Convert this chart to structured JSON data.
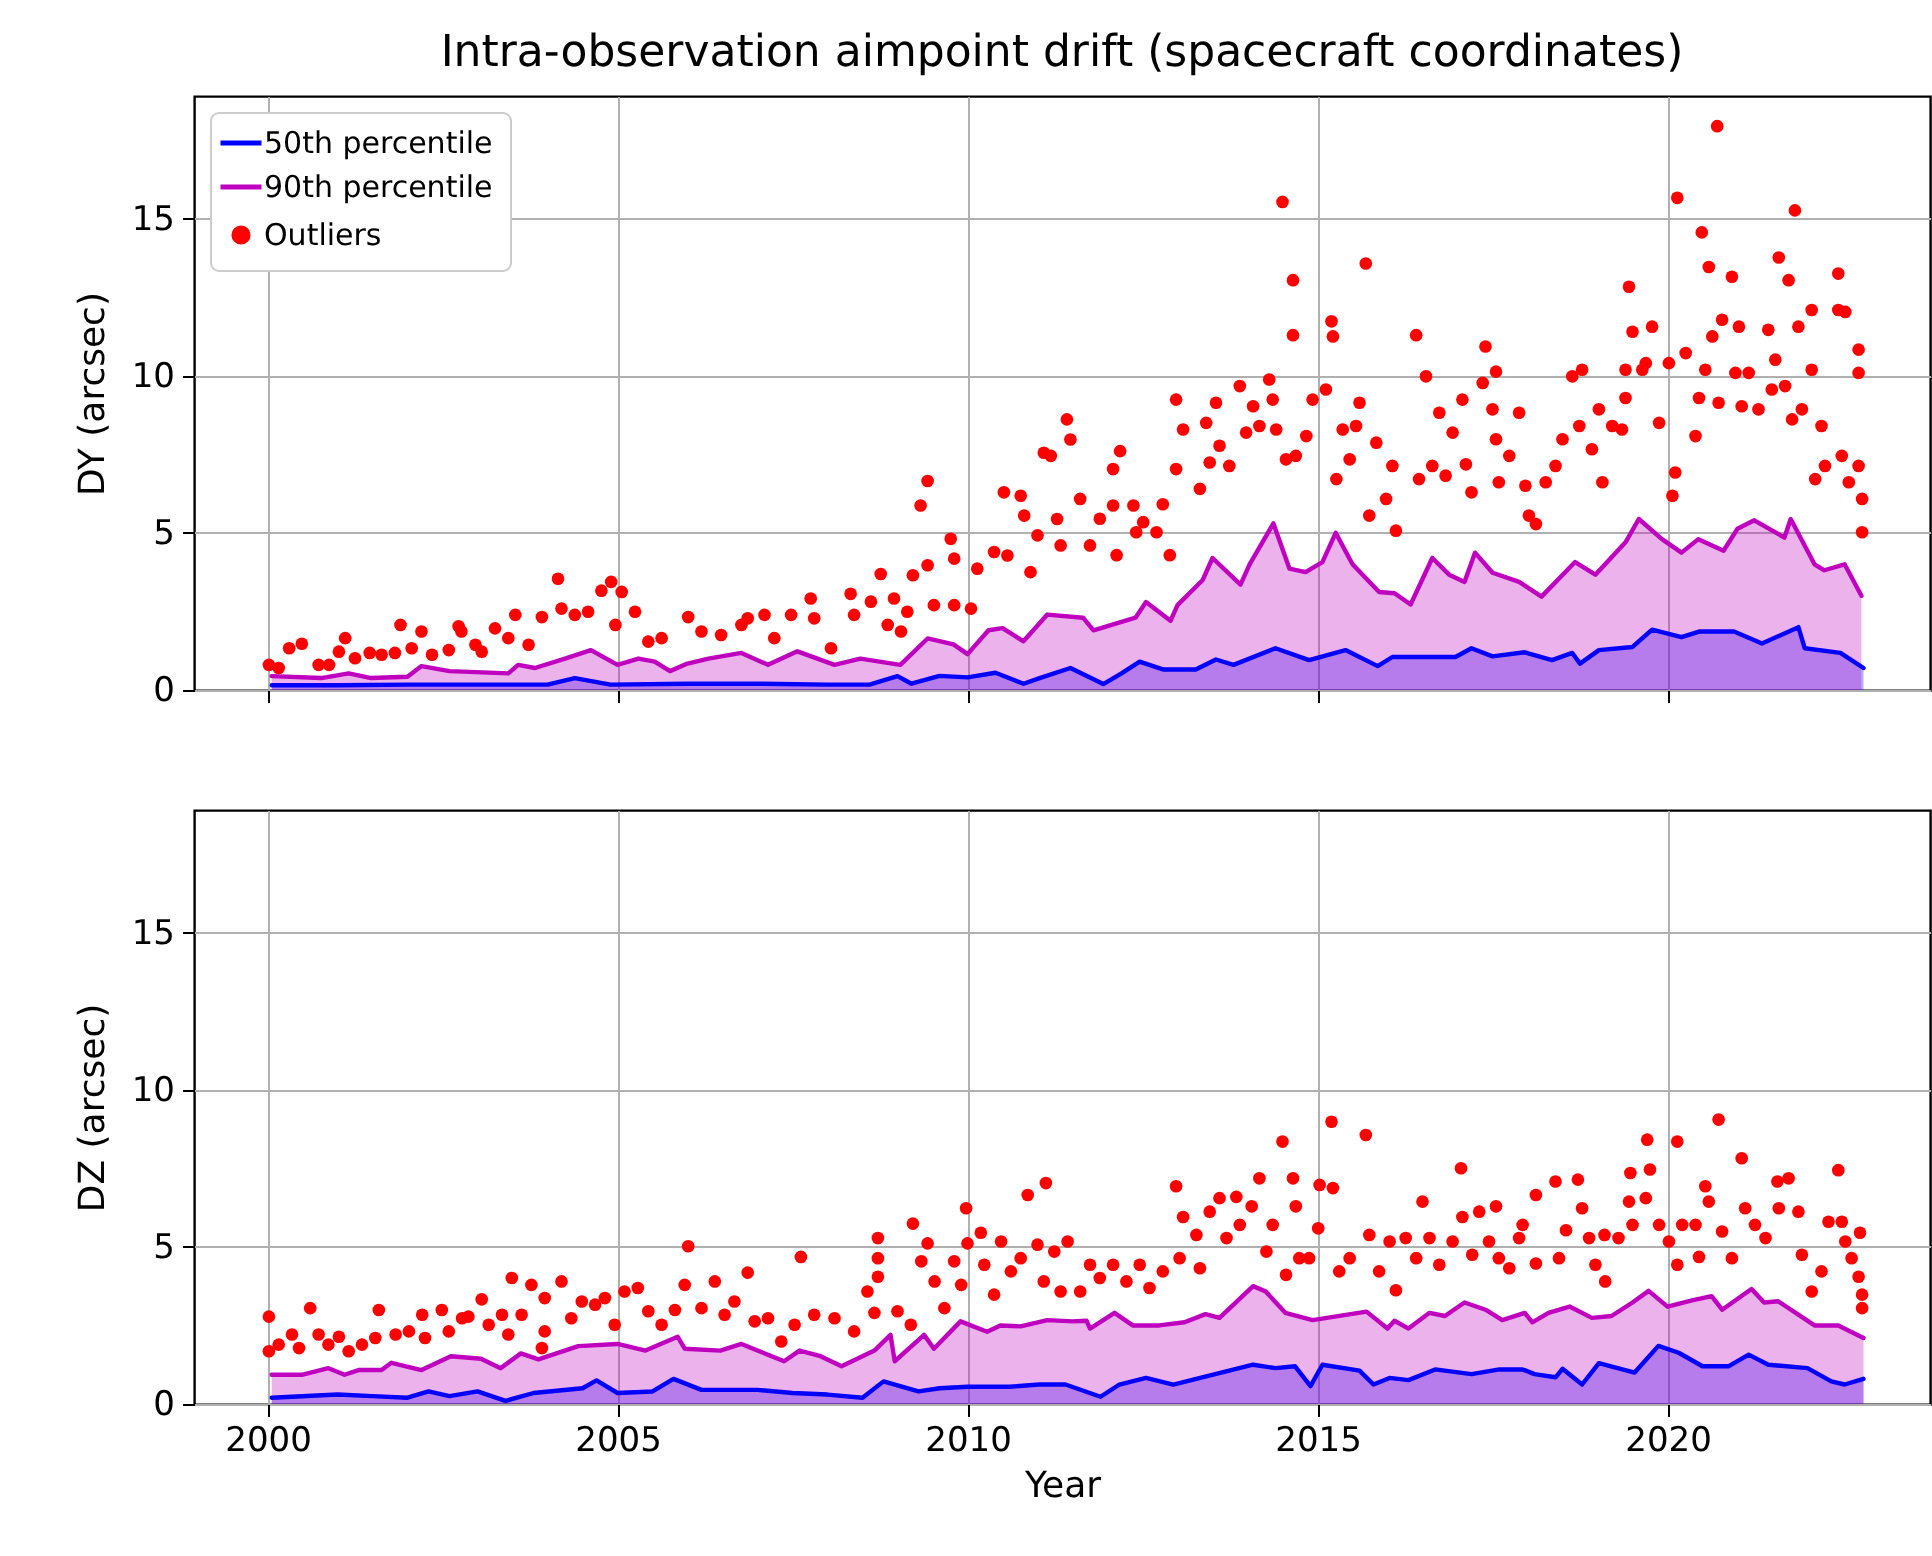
{
  "chart_data": [
    {
      "type": "area",
      "title": "Intra-observation aimpoint drift (spacecraft coordinates)",
      "ylabel": "DY (arcsec)",
      "xlim": [
        1998.95,
        2023.75
      ],
      "ylim": [
        0,
        18.9
      ],
      "xticks": [
        2000,
        2005,
        2010,
        2015,
        2020
      ],
      "yticks": [
        0,
        5,
        10,
        15
      ],
      "grid": true,
      "legend": "top left",
      "tick_labels": "y",
      "series": [
        {
          "name": "50th percentile",
          "color": "#0000ff",
          "x": [
            2000.06,
            2001.0,
            2002.0,
            2003.0,
            2004.0,
            2004.39,
            2004.9,
            2006.0,
            2007.0,
            2008.0,
            2008.6,
            2009.0,
            2009.2,
            2009.6,
            2010.0,
            2010.4,
            2010.8,
            2011.03,
            2011.47,
            2011.94,
            2012.2,
            2012.46,
            2012.8,
            2013.26,
            2013.55,
            2013.8,
            2014.4,
            2014.88,
            2015.4,
            2015.86,
            2016.07,
            2016.97,
            2017.2,
            2017.5,
            2017.96,
            2018.35,
            2018.64,
            2018.75,
            2019.02,
            2019.5,
            2019.78,
            2020.2,
            2020.45,
            2020.95,
            2021.35,
            2021.87,
            2021.96,
            2022.47,
            2022.8
          ],
          "values": [
            0.15,
            0.15,
            0.17,
            0.17,
            0.17,
            0.38,
            0.17,
            0.2,
            0.2,
            0.17,
            0.17,
            0.44,
            0.2,
            0.45,
            0.4,
            0.55,
            0.2,
            0.38,
            0.7,
            0.19,
            0.53,
            0.9,
            0.65,
            0.65,
            0.97,
            0.8,
            1.33,
            0.95,
            1.27,
            0.76,
            1.05,
            1.05,
            1.33,
            1.07,
            1.2,
            0.95,
            1.18,
            0.84,
            1.27,
            1.37,
            1.92,
            1.68,
            1.86,
            1.86,
            1.48,
            2.0,
            1.33,
            1.18,
            0.7
          ]
        },
        {
          "name": "90th percentile",
          "color": "#bf00bf",
          "x": [
            2000.06,
            2000.77,
            2001.16,
            2001.48,
            2002.0,
            2002.2,
            2002.6,
            2003.44,
            2003.58,
            2003.82,
            2004.25,
            2004.62,
            2005.0,
            2005.3,
            2005.53,
            2005.75,
            2006.0,
            2006.3,
            2006.77,
            2007.15,
            2007.57,
            2008.1,
            2008.47,
            2009.04,
            2009.43,
            2009.8,
            2010.0,
            2010.3,
            2010.5,
            2010.8,
            2011.14,
            2011.65,
            2011.8,
            2012.4,
            2012.55,
            2012.9,
            2013.0,
            2013.36,
            2013.5,
            2013.9,
            2014.03,
            2014.37,
            2014.6,
            2014.83,
            2015.07,
            2015.26,
            2015.5,
            2015.88,
            2016.1,
            2016.33,
            2016.64,
            2016.88,
            2017.1,
            2017.25,
            2017.5,
            2017.88,
            2018.2,
            2018.68,
            2018.97,
            2019.4,
            2019.59,
            2019.92,
            2020.2,
            2020.44,
            2020.8,
            2021.0,
            2021.24,
            2021.67,
            2021.76,
            2022.1,
            2022.24,
            2022.53,
            2022.77
          ],
          "values": [
            0.44,
            0.38,
            0.53,
            0.38,
            0.42,
            0.76,
            0.6,
            0.53,
            0.8,
            0.7,
            1.0,
            1.27,
            0.8,
            1.0,
            0.9,
            0.6,
            0.84,
            1.0,
            1.18,
            0.8,
            1.23,
            0.8,
            1.0,
            0.8,
            1.64,
            1.45,
            1.14,
            1.9,
            1.97,
            1.55,
            2.4,
            2.3,
            1.9,
            2.3,
            2.8,
            2.2,
            2.7,
            3.5,
            4.2,
            3.35,
            4.0,
            5.3,
            3.86,
            3.75,
            4.07,
            5.0,
            4.0,
            3.12,
            3.08,
            2.72,
            4.2,
            3.67,
            3.44,
            4.37,
            3.73,
            3.44,
            2.97,
            4.07,
            3.67,
            4.7,
            5.44,
            4.8,
            4.37,
            4.8,
            4.43,
            5.13,
            5.4,
            4.85,
            5.44,
            4.0,
            3.81,
            4.0,
            3.0
          ]
        },
        {
          "name": "Outliers",
          "color": "#ff0000",
          "type": "scatter",
          "marker": "circle",
          "x": [
            2000.02,
            2000.16,
            2000.31,
            2000.49,
            2000.73,
            2000.88,
            2001.02,
            2001.11,
            2001.25,
            2001.46,
            2001.63,
            2001.82,
            2001.9,
            2002.06,
            2002.2,
            2002.35,
            2002.59,
            2002.73,
            2002.77,
            2002.97,
            2003.06,
            2003.25,
            2003.44,
            2003.54,
            2003.73,
            2003.92,
            2004.15,
            2004.2,
            2004.39,
            2004.58,
            2004.77,
            2004.91,
            2005.06,
            2004.97,
            2005.25,
            2005.44,
            2005.63,
            2006.01,
            2006.2,
            2006.48,
            2006.77,
            2006.86,
            2007.1,
            2007.24,
            2007.48,
            2007.76,
            2007.81,
            2008.05,
            2008.33,
            2008.38,
            2008.62,
            2008.76,
            2008.86,
            2008.95,
            2009.05,
            2009.14,
            2009.22,
            2009.33,
            2009.43,
            2009.43,
            2009.52,
            2009.76,
            2009.81,
            2009.81,
            2010.05,
            2010.14,
            2010.38,
            2010.52,
            2010.57,
            2010.76,
            2010.81,
            2010.9,
            2011.0,
            2011.09,
            2011.19,
            2011.28,
            2011.33,
            2011.42,
            2011.47,
            2011.61,
            2011.75,
            2011.89,
            2012.08,
            2012.08,
            2012.13,
            2012.18,
            2012.37,
            2012.41,
            2012.51,
            2012.7,
            2012.79,
            2012.89,
            2012.98,
            2012.98,
            2013.08,
            2013.32,
            2013.41,
            2013.46,
            2013.55,
            2013.6,
            2013.74,
            2013.89,
            2013.98,
            2014.08,
            2014.17,
            2014.31,
            2014.36,
            2014.41,
            2014.5,
            2014.55,
            2014.65,
            2014.65,
            2014.69,
            2014.84,
            2014.93,
            2015.12,
            2015.2,
            2015.22,
            2015.27,
            2015.36,
            2015.46,
            2015.55,
            2015.6,
            2015.69,
            2015.74,
            2015.84,
            2015.98,
            2016.07,
            2016.12,
            2016.41,
            2016.45,
            2016.55,
            2016.64,
            2016.74,
            2016.83,
            2016.93,
            2017.07,
            2017.12,
            2017.2,
            2017.36,
            2017.4,
            2017.5,
            2017.55,
            2017.55,
            2017.59,
            2017.74,
            2017.88,
            2017.97,
            2018.02,
            2018.12,
            2018.26,
            2018.4,
            2018.5,
            2018.64,
            2018.74,
            2018.78,
            2018.92,
            2019.02,
            2019.07,
            2019.21,
            2019.35,
            2019.4,
            2019.4,
            2019.45,
            2019.5,
            2019.64,
            2019.69,
            2019.78,
            2019.88,
            2020.02,
            2020.07,
            2020.11,
            2020.14,
            2020.26,
            2020.4,
            2020.45,
            2020.49,
            2020.54,
            2020.59,
            2020.64,
            2020.71,
            2020.73,
            2020.78,
            2020.92,
            2020.97,
            2021.02,
            2021.06,
            2021.16,
            2021.3,
            2021.44,
            2021.49,
            2021.54,
            2021.59,
            2021.68,
            2021.73,
            2021.78,
            2021.82,
            2021.87,
            2021.92,
            2022.06,
            2022.06,
            2022.11,
            2022.2,
            2022.25,
            2022.44,
            2022.44,
            2022.49,
            2022.54,
            2022.59,
            2022.73,
            2022.73,
            2022.73,
            2022.78,
            2022.78
          ],
          "values": [
            0.8,
            0.7,
            1.33,
            1.47,
            0.8,
            0.8,
            1.22,
            1.65,
            1.01,
            1.18,
            1.12,
            1.18,
            2.07,
            1.33,
            1.86,
            1.12,
            1.27,
            2.03,
            1.86,
            1.44,
            1.22,
            1.96,
            1.65,
            2.39,
            1.44,
            2.32,
            3.54,
            2.59,
            2.39,
            2.49,
            3.16,
            3.44,
            3.12,
            2.07,
            2.49,
            1.54,
            1.65,
            2.32,
            1.86,
            1.75,
            2.07,
            2.28,
            2.39,
            1.65,
            2.39,
            2.91,
            2.28,
            1.33,
            3.06,
            2.39,
            2.81,
            3.69,
            2.07,
            2.91,
            1.86,
            2.49,
            3.65,
            5.87,
            6.65,
            3.97,
            2.7,
            4.81,
            4.18,
            2.7,
            2.59,
            3.86,
            4.39,
            6.29,
            4.28,
            6.18,
            5.55,
            3.75,
            4.92,
            7.55,
            7.45,
            5.44,
            4.6,
            8.61,
            7.97,
            6.08,
            4.6,
            5.45,
            5.87,
            7.03,
            4.29,
            7.6,
            5.87,
            5.02,
            5.34,
            5.02,
            5.91,
            4.29,
            9.24,
            7.03,
            8.29,
            6.4,
            8.5,
            7.24,
            9.14,
            7.77,
            7.13,
            9.67,
            8.19,
            9.03,
            8.4,
            9.88,
            9.24,
            8.29,
            15.53,
            7.34,
            13.04,
            11.29,
            7.45,
            8.08,
            9.24,
            9.56,
            11.73,
            11.25,
            6.71,
            8.29,
            7.34,
            8.4,
            9.14,
            13.57,
            5.55,
            7.87,
            6.08,
            7.13,
            5.07,
            11.29,
            6.71,
            9.98,
            7.13,
            8.82,
            6.82,
            8.19,
            9.24,
            7.18,
            6.29,
            9.77,
            10.93,
            8.93,
            10.13,
            7.98,
            6.61,
            7.45,
            8.82,
            6.5,
            5.55,
            5.28,
            6.61,
            7.13,
            7.98,
            9.98,
            8.4,
            10.19,
            7.66,
            8.93,
            6.61,
            8.4,
            8.29,
            9.29,
            10.19,
            12.83,
            11.4,
            10.19,
            10.4,
            11.56,
            8.5,
            10.4,
            6.18,
            6.92,
            15.66,
            10.72,
            8.08,
            9.29,
            14.56,
            10.19,
            13.46,
            11.25,
            17.94,
            9.14,
            11.78,
            13.15,
            10.09,
            11.56,
            9.03,
            10.09,
            8.93,
            11.46,
            9.56,
            10.51,
            13.76,
            9.67,
            13.04,
            8.61,
            15.26,
            11.56,
            8.93,
            12.09,
            10.19,
            6.71,
            8.4,
            7.13,
            13.25,
            12.09,
            7.45,
            12.03,
            6.61,
            10.83,
            10.09,
            7.13,
            6.08,
            5.02
          ]
        }
      ]
    },
    {
      "type": "area",
      "xlabel": "Year",
      "ylabel": "DZ (arcsec)",
      "xlim": [
        1998.95,
        2023.75
      ],
      "ylim": [
        0,
        18.9
      ],
      "xticks": [
        2000,
        2005,
        2010,
        2015,
        2020
      ],
      "yticks": [
        0,
        5,
        10,
        15
      ],
      "grid": true,
      "series": [
        {
          "color": "#0000ff",
          "x": [
            2000.06,
            2001.0,
            2001.5,
            2002.0,
            2002.3,
            2002.6,
            2003.0,
            2003.4,
            2003.8,
            2004.5,
            2004.7,
            2005.0,
            2005.5,
            2005.8,
            2006.2,
            2007.0,
            2007.5,
            2008.0,
            2008.5,
            2008.8,
            2009.3,
            2009.6,
            2010.0,
            2010.6,
            2011.03,
            2011.4,
            2011.9,
            2012.17,
            2012.55,
            2012.94,
            2014.08,
            2014.4,
            2014.68,
            2014.9,
            2015.07,
            2015.6,
            2015.8,
            2016.03,
            2016.3,
            2016.68,
            2017.2,
            2017.6,
            2017.93,
            2018.1,
            2018.4,
            2018.5,
            2018.78,
            2019.02,
            2019.53,
            2019.87,
            2020.16,
            2020.5,
            2020.87,
            2021.16,
            2021.44,
            2022.0,
            2022.34,
            2022.53,
            2022.8
          ],
          "values": [
            0.2,
            0.3,
            0.25,
            0.2,
            0.4,
            0.25,
            0.4,
            0.1,
            0.35,
            0.5,
            0.75,
            0.35,
            0.4,
            0.8,
            0.45,
            0.45,
            0.35,
            0.3,
            0.2,
            0.72,
            0.4,
            0.5,
            0.55,
            0.55,
            0.62,
            0.62,
            0.23,
            0.62,
            0.83,
            0.62,
            1.25,
            1.14,
            1.2,
            0.57,
            1.25,
            1.06,
            0.62,
            0.83,
            0.76,
            1.1,
            0.95,
            1.1,
            1.1,
            0.95,
            0.85,
            1.12,
            0.62,
            1.3,
            1.0,
            1.85,
            1.63,
            1.2,
            1.2,
            1.57,
            1.25,
            1.14,
            0.72,
            0.62,
            0.8
          ]
        },
        {
          "color": "#bf00bf",
          "x": [
            2000.06,
            2000.49,
            2000.87,
            2001.1,
            2001.3,
            2001.63,
            2001.77,
            2002.2,
            2002.62,
            2003.05,
            2003.33,
            2003.62,
            2003.87,
            2004.44,
            2005.0,
            2005.4,
            2005.86,
            2005.96,
            2006.47,
            2006.77,
            2007.38,
            2007.6,
            2007.9,
            2008.2,
            2008.67,
            2008.9,
            2008.96,
            2009.38,
            2009.52,
            2009.9,
            2010.28,
            2010.47,
            2010.76,
            2011.14,
            2011.5,
            2011.7,
            2011.75,
            2012.1,
            2012.36,
            2012.74,
            2013.1,
            2013.4,
            2013.6,
            2014.08,
            2014.26,
            2014.54,
            2014.93,
            2015.7,
            2016.0,
            2016.1,
            2016.3,
            2016.6,
            2016.82,
            2017.1,
            2017.4,
            2017.64,
            2017.96,
            2018.07,
            2018.3,
            2018.6,
            2018.92,
            2019.2,
            2019.5,
            2019.73,
            2020.0,
            2020.35,
            2020.63,
            2020.78,
            2021.2,
            2021.38,
            2021.58,
            2022.1,
            2022.44,
            2022.8
          ],
          "values": [
            0.93,
            0.93,
            1.14,
            0.93,
            1.08,
            1.08,
            1.31,
            1.08,
            1.52,
            1.44,
            1.14,
            1.61,
            1.42,
            1.84,
            1.91,
            1.7,
            2.14,
            1.76,
            1.7,
            1.91,
            1.36,
            1.7,
            1.52,
            1.2,
            1.7,
            2.2,
            1.36,
            2.2,
            1.76,
            2.63,
            2.3,
            2.5,
            2.47,
            2.67,
            2.63,
            2.65,
            2.4,
            2.9,
            2.5,
            2.5,
            2.6,
            2.86,
            2.74,
            3.75,
            3.58,
            2.9,
            2.67,
            2.94,
            2.4,
            2.65,
            2.4,
            2.9,
            2.8,
            3.23,
            3.0,
            2.67,
            2.9,
            2.6,
            2.9,
            3.1,
            2.74,
            2.8,
            3.23,
            3.6,
            3.1,
            3.3,
            3.43,
            3.0,
            3.66,
            3.23,
            3.27,
            2.5,
            2.5,
            2.1
          ]
        },
        {
          "color": "#ff0000",
          "type": "scatter",
          "marker": "circle",
          "x": [
            2000.02,
            2000.02,
            2000.16,
            2000.35,
            2000.45,
            2000.61,
            2000.73,
            2000.87,
            2001.02,
            2001.16,
            2001.35,
            2001.59,
            2001.54,
            2001.83,
            2002.02,
            2002.21,
            2002.25,
            2002.49,
            2002.59,
            2002.78,
            2002.87,
            2003.06,
            2003.16,
            2003.35,
            2003.44,
            2003.49,
            2003.63,
            2003.77,
            2003.92,
            2003.96,
            2003.96,
            2004.2,
            2004.34,
            2004.49,
            2004.68,
            2004.82,
            2004.96,
            2005.1,
            2005.29,
            2005.44,
            2005.63,
            2005.82,
            2005.96,
            2006.01,
            2006.2,
            2006.39,
            2006.53,
            2006.67,
            2006.86,
            2006.96,
            2007.15,
            2007.34,
            2007.53,
            2007.62,
            2007.81,
            2008.1,
            2008.38,
            2008.57,
            2008.67,
            2008.72,
            2008.72,
            2008.72,
            2009.0,
            2009.19,
            2009.22,
            2009.34,
            2009.43,
            2009.53,
            2009.67,
            2009.81,
            2009.91,
            2009.98,
            2010.0,
            2010.19,
            2010.24,
            2010.38,
            2010.48,
            2010.62,
            2010.76,
            2010.86,
            2011.0,
            2011.09,
            2011.12,
            2011.24,
            2011.33,
            2011.43,
            2011.61,
            2011.75,
            2011.89,
            2012.08,
            2012.27,
            2012.46,
            2012.6,
            2012.79,
            2012.98,
            2013.08,
            2013.03,
            2013.27,
            2013.32,
            2013.46,
            2013.6,
            2013.7,
            2013.84,
            2013.89,
            2014.06,
            2014.17,
            2014.27,
            2014.36,
            2014.5,
            2014.55,
            2014.65,
            2014.69,
            2014.74,
            2014.88,
            2015.01,
            2015.03,
            2015.2,
            2015.22,
            2015.31,
            2015.46,
            2015.69,
            2015.74,
            2015.88,
            2016.03,
            2016.12,
            2016.26,
            2016.41,
            2016.5,
            2016.6,
            2016.74,
            2016.93,
            2017.05,
            2017.07,
            2017.21,
            2017.31,
            2017.45,
            2017.55,
            2017.59,
            2017.74,
            2017.88,
            2017.93,
            2018.12,
            2018.12,
            2018.4,
            2018.45,
            2018.55,
            2018.72,
            2018.78,
            2018.88,
            2018.97,
            2019.1,
            2019.11,
            2019.3,
            2019.45,
            2019.47,
            2019.5,
            2019.69,
            2019.71,
            2019.75,
            2019.88,
            2020.02,
            2020.14,
            2020.14,
            2020.21,
            2020.4,
            2020.45,
            2020.54,
            2020.59,
            2020.73,
            2020.78,
            2020.92,
            2021.06,
            2021.11,
            2021.25,
            2021.4,
            2021.57,
            2021.73,
            2021.59,
            2021.87,
            2021.92,
            2022.06,
            2022.2,
            2022.3,
            2022.44,
            2022.49,
            2022.54,
            2022.63,
            2022.73,
            2022.75,
            2022.78,
            2022.78
          ],
          "values": [
            2.78,
            1.68,
            1.89,
            2.21,
            1.78,
            3.05,
            2.21,
            1.89,
            2.14,
            1.68,
            1.89,
            2.99,
            2.1,
            2.21,
            2.31,
            2.84,
            2.1,
            2.99,
            2.31,
            2.73,
            2.78,
            3.33,
            2.52,
            2.84,
            2.21,
            4.01,
            2.84,
            3.79,
            1.78,
            2.31,
            3.37,
            3.9,
            2.73,
            3.26,
            3.16,
            3.37,
            2.52,
            3.58,
            3.69,
            2.95,
            2.52,
            2.99,
            3.79,
            5.02,
            3.05,
            3.9,
            2.84,
            3.26,
            4.18,
            2.63,
            2.73,
            1.99,
            2.52,
            4.68,
            2.84,
            2.73,
            2.31,
            3.58,
            2.9,
            4.64,
            5.28,
            4.05,
            2.95,
            2.52,
            5.74,
            4.54,
            5.11,
            3.9,
            3.05,
            4.54,
            3.79,
            6.23,
            5.11,
            5.45,
            4.43,
            3.48,
            5.17,
            4.22,
            4.64,
            6.65,
            5.07,
            3.9,
            7.03,
            4.85,
            3.58,
            5.17,
            3.58,
            4.43,
            4.01,
            4.43,
            3.9,
            4.43,
            3.69,
            4.22,
            6.93,
            5.95,
            4.64,
            5.38,
            4.32,
            6.12,
            6.55,
            5.28,
            6.59,
            5.7,
            6.29,
            7.18,
            4.85,
            5.7,
            8.35,
            4.11,
            7.18,
            6.29,
            4.64,
            4.64,
            5.59,
            6.97,
            8.98,
            6.87,
            4.22,
            4.64,
            8.56,
            5.38,
            4.22,
            5.17,
            3.62,
            5.28,
            4.64,
            6.44,
            5.28,
            4.43,
            5.17,
            7.5,
            5.95,
            4.75,
            6.12,
            5.17,
            6.29,
            4.64,
            4.32,
            5.28,
            5.7,
            6.65,
            4.47,
            7.08,
            4.64,
            5.53,
            7.14,
            6.23,
            5.28,
            4.43,
            5.38,
            3.9,
            5.28,
            6.44,
            7.35,
            5.7,
            6.55,
            8.41,
            7.46,
            5.7,
            5.17,
            4.43,
            8.35,
            5.7,
            5.7,
            4.68,
            6.93,
            6.44,
            9.05,
            5.49,
            4.64,
            7.82,
            6.23,
            5.7,
            5.28,
            7.08,
            7.18,
            6.23,
            6.12,
            4.75,
            3.58,
            4.22,
            5.8,
            7.44,
            5.8,
            5.17,
            4.64,
            4.05,
            5.45,
            3.48,
            3.05
          ]
        }
      ]
    }
  ]
}
